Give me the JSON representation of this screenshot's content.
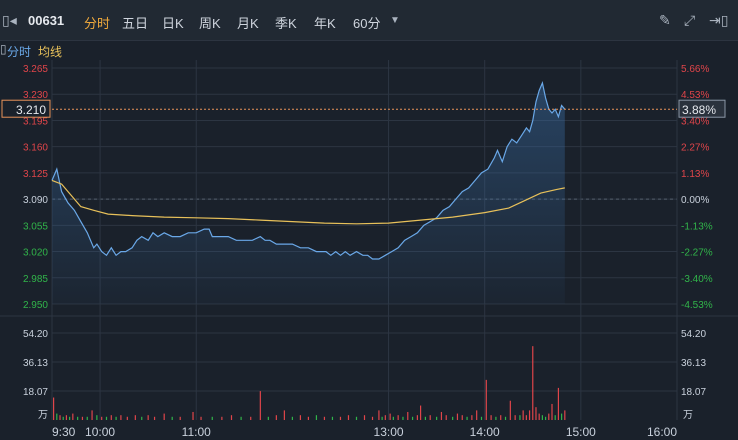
{
  "toolbar": {
    "stock_code": "00631",
    "tabs": [
      {
        "label": "分时",
        "active": true
      },
      {
        "label": "五日",
        "active": false
      },
      {
        "label": "日K",
        "active": false
      },
      {
        "label": "周K",
        "active": false
      },
      {
        "label": "月K",
        "active": false
      },
      {
        "label": "季K",
        "active": false
      },
      {
        "label": "年K",
        "active": false
      },
      {
        "label": "60分",
        "active": false
      }
    ],
    "icons": [
      "sidebar-toggle-icon",
      "dropdown-arrow-icon",
      "pencil-icon",
      "fullscreen-icon",
      "collapse-right-icon"
    ]
  },
  "legend": {
    "line1": "分时",
    "line2": "均线"
  },
  "colors": {
    "price_line": "#6aa8e8",
    "avg_line": "#e8c15a",
    "up": "#e0454a",
    "down": "#31b44a",
    "neutral": "#c9d1dc",
    "grid": "#2c3542",
    "background": "#1a212b"
  },
  "crosshair": {
    "price_label": "3.210",
    "pct_label": "3.88%"
  },
  "chart_data": {
    "type": "line",
    "price_axis": {
      "ticks": [
        "3.265",
        "3.230",
        "3.195",
        "3.160",
        "3.125",
        "3.090",
        "3.055",
        "3.020",
        "2.985",
        "2.950"
      ],
      "range": [
        2.95,
        3.265
      ],
      "prev_close": 3.09
    },
    "pct_axis": {
      "ticks": [
        "5.66%",
        "4.53%",
        "3.40%",
        "2.27%",
        "1.13%",
        "0.00%",
        "-1.13%",
        "-2.27%",
        "-3.40%",
        "-4.53%"
      ]
    },
    "volume_axis": {
      "ticks": [
        "54.20",
        "36.13",
        "18.07"
      ],
      "unit": "万",
      "range": [
        0,
        54.2
      ]
    },
    "time_labels": [
      "9:30",
      "10:00",
      "11:00",
      "13:00",
      "14:00",
      "15:00",
      "16:00"
    ],
    "price_series": {
      "name": "分时",
      "points": [
        [
          0,
          3.115
        ],
        [
          3,
          3.13
        ],
        [
          6,
          3.1
        ],
        [
          10,
          3.085
        ],
        [
          14,
          3.075
        ],
        [
          18,
          3.06
        ],
        [
          22,
          3.045
        ],
        [
          26,
          3.025
        ],
        [
          28,
          3.03
        ],
        [
          31,
          3.02
        ],
        [
          34,
          3.015
        ],
        [
          37,
          3.025
        ],
        [
          40,
          3.015
        ],
        [
          43,
          3.02
        ],
        [
          46,
          3.02
        ],
        [
          50,
          3.025
        ],
        [
          53,
          3.035
        ],
        [
          56,
          3.04
        ],
        [
          60,
          3.035
        ],
        [
          63,
          3.045
        ],
        [
          66,
          3.04
        ],
        [
          70,
          3.045
        ],
        [
          75,
          3.04
        ],
        [
          80,
          3.04
        ],
        [
          85,
          3.045
        ],
        [
          90,
          3.045
        ],
        [
          95,
          3.05
        ],
        [
          98,
          3.05
        ],
        [
          100,
          3.04
        ],
        [
          105,
          3.04
        ],
        [
          110,
          3.04
        ],
        [
          115,
          3.035
        ],
        [
          120,
          3.035
        ],
        [
          125,
          3.035
        ],
        [
          130,
          3.04
        ],
        [
          133,
          3.035
        ],
        [
          136,
          3.035
        ],
        [
          140,
          3.03
        ],
        [
          145,
          3.03
        ],
        [
          150,
          3.03
        ],
        [
          155,
          3.025
        ],
        [
          160,
          3.025
        ],
        [
          165,
          3.02
        ],
        [
          168,
          3.02
        ],
        [
          171,
          3.02
        ],
        [
          174,
          3.015
        ],
        [
          177,
          3.02
        ],
        [
          180,
          3.015
        ],
        [
          183,
          3.02
        ],
        [
          186,
          3.015
        ],
        [
          190,
          3.02
        ],
        [
          194,
          3.015
        ],
        [
          197,
          3.015
        ],
        [
          200,
          3.01
        ],
        [
          204,
          3.01
        ],
        [
          208,
          3.015
        ],
        [
          212,
          3.02
        ],
        [
          216,
          3.025
        ],
        [
          220,
          3.035
        ],
        [
          224,
          3.04
        ],
        [
          228,
          3.045
        ],
        [
          232,
          3.055
        ],
        [
          236,
          3.06
        ],
        [
          240,
          3.065
        ],
        [
          244,
          3.075
        ],
        [
          248,
          3.08
        ],
        [
          252,
          3.09
        ],
        [
          256,
          3.1
        ],
        [
          260,
          3.105
        ],
        [
          264,
          3.115
        ],
        [
          268,
          3.125
        ],
        [
          272,
          3.13
        ],
        [
          276,
          3.145
        ],
        [
          278,
          3.155
        ],
        [
          281,
          3.14
        ],
        [
          284,
          3.16
        ],
        [
          287,
          3.17
        ],
        [
          290,
          3.165
        ],
        [
          293,
          3.175
        ],
        [
          296,
          3.185
        ],
        [
          298,
          3.18
        ],
        [
          300,
          3.195
        ],
        [
          302,
          3.22
        ],
        [
          304,
          3.235
        ],
        [
          306,
          3.245
        ],
        [
          308,
          3.225
        ],
        [
          310,
          3.21
        ],
        [
          312,
          3.205
        ],
        [
          314,
          3.21
        ],
        [
          316,
          3.2
        ],
        [
          318,
          3.215
        ],
        [
          320,
          3.21
        ]
      ]
    },
    "avg_series": {
      "name": "均线",
      "points": [
        [
          0,
          3.115
        ],
        [
          6,
          3.11
        ],
        [
          12,
          3.095
        ],
        [
          18,
          3.08
        ],
        [
          26,
          3.075
        ],
        [
          35,
          3.07
        ],
        [
          50,
          3.068
        ],
        [
          70,
          3.066
        ],
        [
          90,
          3.065
        ],
        [
          110,
          3.064
        ],
        [
          130,
          3.062
        ],
        [
          150,
          3.06
        ],
        [
          170,
          3.058
        ],
        [
          190,
          3.057
        ],
        [
          210,
          3.058
        ],
        [
          230,
          3.062
        ],
        [
          250,
          3.066
        ],
        [
          270,
          3.072
        ],
        [
          285,
          3.078
        ],
        [
          295,
          3.088
        ],
        [
          305,
          3.098
        ],
        [
          315,
          3.103
        ],
        [
          320,
          3.105
        ]
      ]
    },
    "volume_series": {
      "name": "成交量",
      "bars": [
        [
          1,
          14,
          "up"
        ],
        [
          3,
          4,
          "down"
        ],
        [
          5,
          3,
          "up"
        ],
        [
          7,
          2,
          "down"
        ],
        [
          9,
          3,
          "up"
        ],
        [
          11,
          2,
          "down"
        ],
        [
          13,
          4,
          "up"
        ],
        [
          16,
          2,
          "down"
        ],
        [
          19,
          2,
          "up"
        ],
        [
          22,
          2,
          "down"
        ],
        [
          25,
          6,
          "up"
        ],
        [
          28,
          3,
          "down"
        ],
        [
          31,
          2,
          "up"
        ],
        [
          34,
          2,
          "down"
        ],
        [
          37,
          3,
          "up"
        ],
        [
          40,
          2,
          "down"
        ],
        [
          43,
          3,
          "up"
        ],
        [
          47,
          2,
          "up"
        ],
        [
          52,
          3,
          "up"
        ],
        [
          56,
          2,
          "down"
        ],
        [
          60,
          3,
          "up"
        ],
        [
          64,
          2,
          "up"
        ],
        [
          70,
          4,
          "up"
        ],
        [
          75,
          2,
          "down"
        ],
        [
          80,
          2,
          "up"
        ],
        [
          88,
          5,
          "up"
        ],
        [
          93,
          2,
          "up"
        ],
        [
          100,
          2,
          "down"
        ],
        [
          106,
          2,
          "up"
        ],
        [
          112,
          3,
          "up"
        ],
        [
          118,
          2,
          "down"
        ],
        [
          124,
          2,
          "up"
        ],
        [
          130,
          18,
          "up"
        ],
        [
          135,
          2,
          "down"
        ],
        [
          140,
          3,
          "up"
        ],
        [
          145,
          6,
          "up"
        ],
        [
          150,
          2,
          "down"
        ],
        [
          155,
          3,
          "up"
        ],
        [
          160,
          2,
          "up"
        ],
        [
          165,
          3,
          "down"
        ],
        [
          170,
          2,
          "up"
        ],
        [
          175,
          2,
          "down"
        ],
        [
          180,
          2,
          "up"
        ],
        [
          185,
          3,
          "up"
        ],
        [
          190,
          2,
          "down"
        ],
        [
          195,
          3,
          "up"
        ],
        [
          200,
          2,
          "up"
        ],
        [
          204,
          6,
          "up"
        ],
        [
          206,
          2,
          "down"
        ],
        [
          208,
          3,
          "up"
        ],
        [
          211,
          4,
          "up"
        ],
        [
          213,
          2,
          "down"
        ],
        [
          216,
          3,
          "up"
        ],
        [
          219,
          2,
          "down"
        ],
        [
          222,
          5,
          "up"
        ],
        [
          225,
          2,
          "down"
        ],
        [
          228,
          3,
          "up"
        ],
        [
          230,
          9,
          "up"
        ],
        [
          233,
          2,
          "down"
        ],
        [
          236,
          3,
          "up"
        ],
        [
          240,
          2,
          "down"
        ],
        [
          243,
          5,
          "up"
        ],
        [
          246,
          3,
          "up"
        ],
        [
          250,
          2,
          "down"
        ],
        [
          253,
          4,
          "up"
        ],
        [
          256,
          3,
          "up"
        ],
        [
          259,
          2,
          "down"
        ],
        [
          262,
          3,
          "up"
        ],
        [
          265,
          6,
          "up"
        ],
        [
          268,
          2,
          "down"
        ],
        [
          271,
          25,
          "up"
        ],
        [
          274,
          3,
          "up"
        ],
        [
          277,
          2,
          "down"
        ],
        [
          280,
          3,
          "up"
        ],
        [
          283,
          2,
          "down"
        ],
        [
          286,
          12,
          "up"
        ],
        [
          289,
          3,
          "up"
        ],
        [
          292,
          3,
          "down"
        ],
        [
          294,
          6,
          "up"
        ],
        [
          296,
          3,
          "up"
        ],
        [
          298,
          6,
          "up"
        ],
        [
          300,
          46,
          "up"
        ],
        [
          302,
          8,
          "up"
        ],
        [
          304,
          4,
          "up"
        ],
        [
          306,
          3,
          "down"
        ],
        [
          308,
          2,
          "down"
        ],
        [
          310,
          4,
          "up"
        ],
        [
          312,
          10,
          "up"
        ],
        [
          314,
          3,
          "down"
        ],
        [
          316,
          20,
          "up"
        ],
        [
          318,
          4,
          "down"
        ],
        [
          320,
          6,
          "up"
        ]
      ]
    }
  }
}
